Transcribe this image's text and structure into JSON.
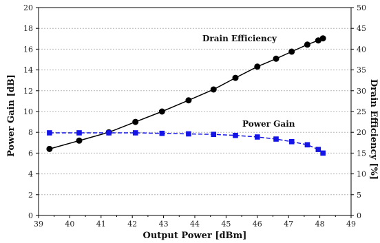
{
  "chart_data": {
    "type": "line",
    "title": "",
    "xlabel": "Output Power [dBm]",
    "ylabel_left": "Power  Gain [dB]",
    "ylabel_right": "Drain Efficiency [%]",
    "xlim": [
      39,
      49
    ],
    "ylim_left": [
      0,
      20
    ],
    "ylim_right": [
      0,
      50
    ],
    "x_ticks": [
      39,
      40,
      41,
      42,
      43,
      44,
      45,
      46,
      47,
      48,
      49
    ],
    "y_ticks_left": [
      0,
      2,
      4,
      6,
      8,
      10,
      12,
      14,
      16,
      18,
      20
    ],
    "y_ticks_right": [
      0,
      5,
      10,
      15,
      20,
      25,
      30,
      35,
      40,
      45,
      50
    ],
    "grid": true,
    "series": [
      {
        "name": "Drain Efficiency",
        "axis": "right",
        "color": "#000000",
        "marker": "circle",
        "line": "solid",
        "x": [
          39.35,
          40.3,
          41.25,
          42.1,
          42.95,
          43.8,
          44.6,
          45.3,
          46.0,
          46.6,
          47.1,
          47.6,
          47.95,
          48.1
        ],
        "y": [
          16,
          18,
          20,
          22.5,
          25,
          27.7,
          30.3,
          33.1,
          35.8,
          37.7,
          39.4,
          41.1,
          42.1,
          42.6
        ]
      },
      {
        "name": "Power  Gain",
        "axis": "left",
        "color": "#1414e6",
        "marker": "square",
        "line": "dashed",
        "x": [
          39.35,
          40.3,
          41.25,
          42.1,
          42.95,
          43.8,
          44.6,
          45.3,
          46.0,
          46.6,
          47.1,
          47.6,
          47.95,
          48.1
        ],
        "y": [
          7.95,
          7.95,
          7.95,
          7.95,
          7.9,
          7.85,
          7.8,
          7.7,
          7.55,
          7.35,
          7.1,
          6.8,
          6.35,
          6.0
        ]
      }
    ],
    "annotations": [
      {
        "text": "Drain Efficiency",
        "series": "Drain Efficiency"
      },
      {
        "text": "Power  Gain",
        "series": "Power  Gain"
      }
    ]
  }
}
